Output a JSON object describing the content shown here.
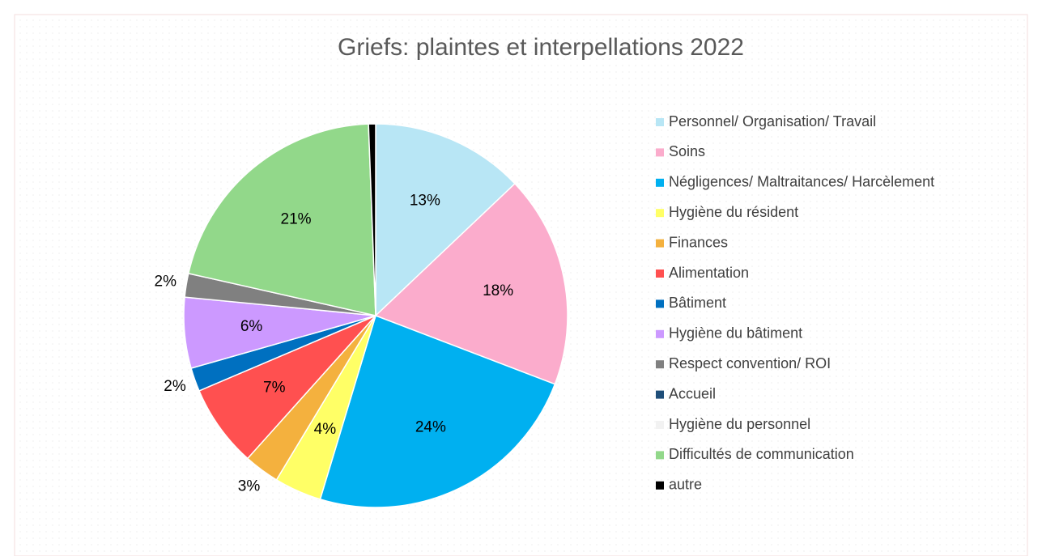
{
  "chart_data": {
    "type": "pie",
    "title": "Griefs: plaintes et interpellations 2022",
    "categories": [
      "Personnel/ Organisation/ Travail",
      "Soins",
      "Négligences/ Maltraitances/ Harcèlement",
      "Hygiène du résident",
      "Finances",
      "Alimentation",
      "Bâtiment",
      "Hygiène du bâtiment",
      "Respect convention/ ROI",
      "Accueil",
      "Hygiène du personnel",
      "Difficultés de communication",
      "autre"
    ],
    "values": [
      13,
      18,
      24,
      4,
      3,
      7,
      2,
      6,
      2,
      0,
      0,
      21,
      0.6
    ],
    "value_labels": [
      "13%",
      "18%",
      "24%",
      "4%",
      "3%",
      "7%",
      "2%",
      "6%",
      "2%",
      null,
      null,
      "21%",
      null
    ],
    "colors": [
      "#b8e6f5",
      "#fbaccc",
      "#00b0f0",
      "#ffff66",
      "#f4b13e",
      "#ff5050",
      "#0070c0",
      "#cc99ff",
      "#808080",
      "#1f4e79",
      "#f2f2f2",
      "#92d88a",
      "#000000"
    ],
    "legend": "right"
  }
}
